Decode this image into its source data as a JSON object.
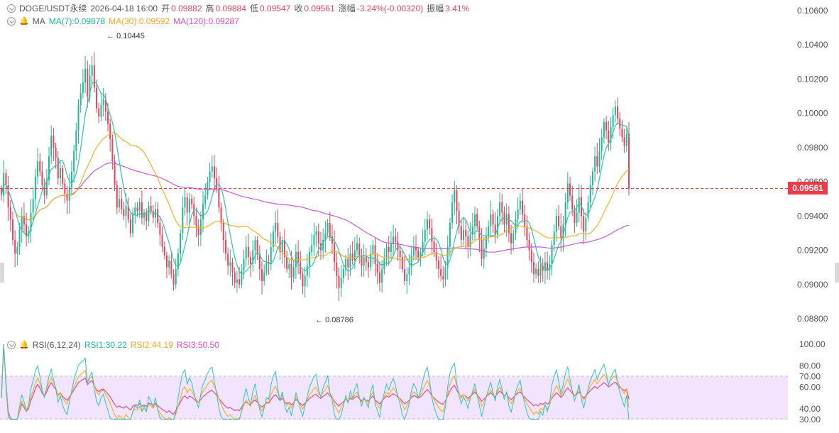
{
  "header": {
    "symbol": "DOGE/USDT永续",
    "time": "2026-04-18 16:00",
    "open_label": "开",
    "open": "0.09882",
    "high_label": "高",
    "high": "0.09884",
    "low_label": "低",
    "low": "0.09547",
    "close_label": "收",
    "close": "0.09561",
    "change_label": "涨幅",
    "change": "-3.24%(-0.00320)",
    "amp_label": "振幅",
    "amp": "3.41%"
  },
  "ma": {
    "label": "MA",
    "ma7": "MA(7):0.09878",
    "ma30": "MA(30):0.09592",
    "ma120": "MA(120):0.09287"
  },
  "rsi": {
    "label": "RSI(6,12,24)",
    "rsi1": "RSI1:30.22",
    "rsi2": "RSI2:44.19",
    "rsi3": "RSI3:50.50"
  },
  "colors": {
    "up": "#1fb894",
    "down": "#e8425a",
    "ma7": "#2ec4a6",
    "ma30": "#f5b021",
    "ma120": "#c25bd6",
    "rsi_band": "#efe0fb"
  },
  "chart_data": {
    "type": "candlestick",
    "price_axis": {
      "min": 0.088,
      "max": 0.106,
      "ticks": [
        "0.10600",
        "0.10400",
        "0.10200",
        "0.10000",
        "0.09800",
        "0.09600",
        "0.09400",
        "0.09200",
        "0.09000",
        "0.08800"
      ]
    },
    "current_price": "0.09561",
    "annotations": {
      "high": "0.10445",
      "low": "0.08786"
    },
    "rsi_axis": {
      "ticks": [
        "100.00",
        "80.00",
        "70.00",
        "60.00",
        "40.00",
        "30.00"
      ],
      "band": [
        30,
        70
      ]
    },
    "closes": [
      0.0952,
      0.0965,
      0.0958,
      0.0945,
      0.0938,
      0.0926,
      0.0918,
      0.0922,
      0.0932,
      0.094,
      0.0935,
      0.0928,
      0.0931,
      0.0942,
      0.095,
      0.0963,
      0.0972,
      0.0966,
      0.0958,
      0.0952,
      0.0961,
      0.0975,
      0.0987,
      0.098,
      0.0974,
      0.0962,
      0.0968,
      0.0959,
      0.0953,
      0.0949,
      0.0957,
      0.0966,
      0.0978,
      0.099,
      0.1005,
      0.1012,
      0.1018,
      0.1026,
      0.101,
      0.1022,
      0.1028,
      0.1015,
      0.1003,
      0.0998,
      0.1005,
      0.1008,
      0.1001,
      0.0994,
      0.0985,
      0.0972,
      0.0958,
      0.0945,
      0.095,
      0.0944,
      0.094,
      0.0946,
      0.0938,
      0.093,
      0.0941,
      0.0945,
      0.0943,
      0.0948,
      0.0939,
      0.0942,
      0.0937,
      0.0946,
      0.0943,
      0.0939,
      0.0944,
      0.0936,
      0.0929,
      0.0922,
      0.0917,
      0.091,
      0.0914,
      0.0906,
      0.09,
      0.0909,
      0.0918,
      0.093,
      0.0945,
      0.0951,
      0.0942,
      0.095,
      0.0947,
      0.094,
      0.0934,
      0.0929,
      0.0938,
      0.0947,
      0.0952,
      0.096,
      0.0966,
      0.0969,
      0.0962,
      0.0956,
      0.0945,
      0.0936,
      0.0926,
      0.0918,
      0.0911,
      0.0913,
      0.0907,
      0.0901,
      0.0903,
      0.09,
      0.0908,
      0.0915,
      0.0922,
      0.0916,
      0.0912,
      0.092,
      0.0926,
      0.0918,
      0.0909,
      0.0902,
      0.0907,
      0.0913,
      0.0912,
      0.0922,
      0.0931,
      0.0936,
      0.0928,
      0.0919,
      0.0926,
      0.0916,
      0.0909,
      0.0912,
      0.0904,
      0.091,
      0.0919,
      0.0913,
      0.0906,
      0.0899,
      0.0905,
      0.0911,
      0.0919,
      0.0923,
      0.0929,
      0.0931,
      0.0924,
      0.092,
      0.0926,
      0.093,
      0.0936,
      0.0928,
      0.0924,
      0.0913,
      0.0905,
      0.0898,
      0.0904,
      0.0909,
      0.0915,
      0.091,
      0.0918,
      0.0914,
      0.092,
      0.0924,
      0.0917,
      0.0911,
      0.0916,
      0.0913,
      0.091,
      0.0918,
      0.0923,
      0.0912,
      0.0907,
      0.0901,
      0.0909,
      0.0915,
      0.0922,
      0.0919,
      0.0924,
      0.0928,
      0.0925,
      0.092,
      0.0916,
      0.0909,
      0.0902,
      0.0906,
      0.091,
      0.0917,
      0.0922,
      0.092,
      0.0916,
      0.0919,
      0.0925,
      0.0932,
      0.0938,
      0.0933,
      0.0925,
      0.0919,
      0.0914,
      0.0909,
      0.0905,
      0.0903,
      0.091,
      0.0922,
      0.0936,
      0.0948,
      0.0955,
      0.0943,
      0.0934,
      0.0926,
      0.0932,
      0.0928,
      0.0922,
      0.0929,
      0.0934,
      0.0941,
      0.0934,
      0.0926,
      0.0915,
      0.0921,
      0.0928,
      0.0934,
      0.0941,
      0.0935,
      0.0929,
      0.094,
      0.0948,
      0.0942,
      0.0935,
      0.0941,
      0.093,
      0.0924,
      0.093,
      0.0938,
      0.0944,
      0.0949,
      0.0941,
      0.0934,
      0.0926,
      0.092,
      0.0913,
      0.0906,
      0.0909,
      0.0905,
      0.0911,
      0.0908,
      0.0913,
      0.0908,
      0.0912,
      0.0923,
      0.0931,
      0.094,
      0.0934,
      0.0927,
      0.0935,
      0.0948,
      0.0959,
      0.0952,
      0.0944,
      0.0936,
      0.0942,
      0.0951,
      0.094,
      0.0931,
      0.0939,
      0.0948,
      0.0958,
      0.0966,
      0.0975,
      0.0969,
      0.0978,
      0.0986,
      0.0995,
      0.099,
      0.0983,
      0.0992,
      0.0999,
      0.1004,
      0.0997,
      0.0991,
      0.0986,
      0.0981,
      0.0988,
      0.09561
    ]
  }
}
